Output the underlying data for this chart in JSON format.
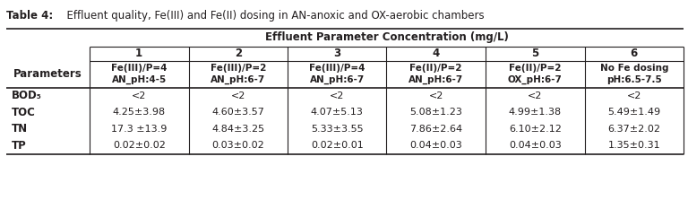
{
  "title_bold": "Table 4:",
  "title_rest": "  Effluent quality, Fe(III) and Fe(II) dosing in AN-anoxic and OX-aerobic chambers",
  "main_header": "Effluent Parameter Concentration (mg/L)",
  "col_numbers": [
    "1",
    "2",
    "3",
    "4",
    "5",
    "6"
  ],
  "col_sub1": [
    "Fe(III)/P=4",
    "Fe(III)/P=2",
    "Fe(III)/P=4",
    "Fe(II)/P=2",
    "Fe(II)/P=2",
    "No Fe dosing"
  ],
  "col_sub2": [
    "AN_pH:4-5",
    "AN_pH:6-7",
    "AN_pH:6-7",
    "AN_pH:6-7",
    "OX_pH:6-7",
    "pH:6.5-7.5"
  ],
  "param_header": "Parameters",
  "row_labels": [
    "BOD₅",
    "TOC",
    "TN",
    "TP"
  ],
  "data": [
    [
      "<2",
      "<2",
      "<2",
      "<2",
      "<2",
      "<2"
    ],
    [
      "4.25±3.98",
      "4.60±3.57",
      "4.07±5.13",
      "5.08±1.23",
      "4.99±1.38",
      "5.49±1.49"
    ],
    [
      "17.3 ±13.9",
      "4.84±3.25",
      "5.33±3.55",
      "7.86±2.64",
      "6.10±2.12",
      "6.37±2.02"
    ],
    [
      "0.02±0.02",
      "0.03±0.02",
      "0.02±0.01",
      "0.04±0.03",
      "0.04±0.03",
      "1.35±0.31"
    ]
  ],
  "bg_color": "#ffffff",
  "text_color": "#231f20",
  "line_color": "#231f20",
  "fig_width": 7.68,
  "fig_height": 2.23,
  "dpi": 100
}
